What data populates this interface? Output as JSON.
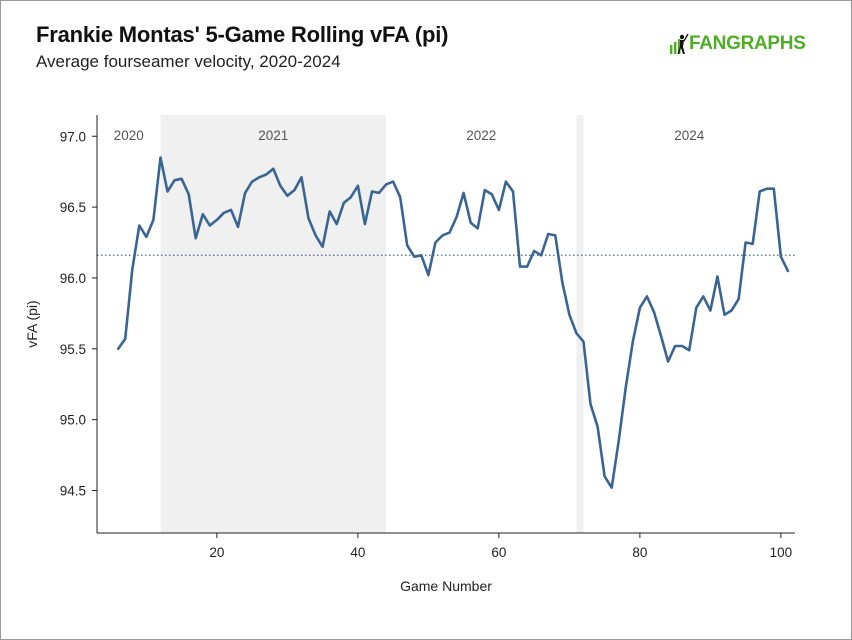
{
  "header": {
    "title": "Frankie Montas' 5-Game Rolling vFA (pi)",
    "subtitle": "Average fourseamer velocity, 2020-2024",
    "logo_text": "FANGRAPHS",
    "logo_icon": "fangraphs-batter-icon",
    "brand_color": "#50ae26"
  },
  "chart_data": {
    "type": "line",
    "xlabel": "Game Number",
    "ylabel": "vFA (pi)",
    "xlim": [
      3,
      102
    ],
    "ylim": [
      94.2,
      97.15
    ],
    "x_ticks": [
      20,
      40,
      60,
      80,
      100
    ],
    "y_ticks": [
      94.5,
      95.0,
      95.5,
      96.0,
      96.5,
      97.0
    ],
    "y_tick_labels": [
      "94.5",
      "95.0",
      "95.5",
      "96.0",
      "96.5",
      "97.0"
    ],
    "grid": false,
    "line_color": "#3a6593",
    "reference_line": {
      "value": 96.16,
      "style": "dotted",
      "color": "#3a6593"
    },
    "season_bands": [
      {
        "label": "2020",
        "start": 3,
        "end": 12,
        "shaded": false
      },
      {
        "label": "2021",
        "start": 12,
        "end": 44,
        "shaded": true
      },
      {
        "label": "2022",
        "start": 44,
        "end": 71,
        "shaded": false
      },
      {
        "label": "",
        "start": 71,
        "end": 72,
        "shaded": true
      },
      {
        "label": "2024",
        "start": 72,
        "end": 102,
        "shaded": false
      }
    ],
    "band_color": "#f0f0f0",
    "series": [
      {
        "x": [
          6,
          7,
          8,
          9,
          10,
          11,
          12,
          13,
          14,
          15,
          16,
          17,
          18,
          19,
          20,
          21,
          22,
          23,
          24,
          25,
          26,
          27,
          28,
          29,
          30,
          31,
          32,
          33,
          34,
          35,
          36,
          37,
          38,
          39,
          40,
          41,
          42,
          43,
          44,
          45,
          46,
          47,
          48,
          49,
          50,
          51,
          52,
          53,
          54,
          55,
          56,
          57,
          58,
          59,
          60,
          61,
          62,
          63,
          64,
          65,
          66,
          67,
          68,
          69,
          70,
          71,
          72,
          73,
          74,
          75,
          76,
          77,
          78,
          79,
          80,
          81,
          82,
          83,
          84,
          85,
          86,
          87,
          88,
          89,
          90,
          91,
          92,
          93,
          94,
          95,
          96,
          97,
          98,
          99,
          100,
          101
        ],
        "values": [
          95.5,
          95.57,
          96.06,
          96.37,
          96.29,
          96.41,
          96.85,
          96.61,
          96.69,
          96.7,
          96.59,
          96.28,
          96.45,
          96.37,
          96.41,
          96.46,
          96.48,
          96.36,
          96.6,
          96.68,
          96.71,
          96.73,
          96.77,
          96.65,
          96.58,
          96.62,
          96.71,
          96.42,
          96.3,
          96.22,
          96.47,
          96.38,
          96.53,
          96.57,
          96.65,
          96.38,
          96.61,
          96.6,
          96.66,
          96.68,
          96.57,
          96.23,
          96.15,
          96.16,
          96.02,
          96.25,
          96.3,
          96.32,
          96.43,
          96.6,
          96.39,
          96.35,
          96.62,
          96.59,
          96.48,
          96.68,
          96.61,
          96.08,
          96.08,
          96.19,
          96.16,
          96.31,
          96.3,
          95.97,
          95.74,
          95.61,
          95.55,
          95.11,
          94.95,
          94.6,
          94.52,
          94.85,
          95.23,
          95.55,
          95.79,
          95.87,
          95.76,
          95.59,
          95.41,
          95.52,
          95.52,
          95.49,
          95.79,
          95.87,
          95.77,
          96.01,
          95.74,
          95.77,
          95.85,
          96.25,
          96.24,
          96.61,
          96.63,
          96.63,
          96.15,
          96.05
        ]
      }
    ]
  }
}
